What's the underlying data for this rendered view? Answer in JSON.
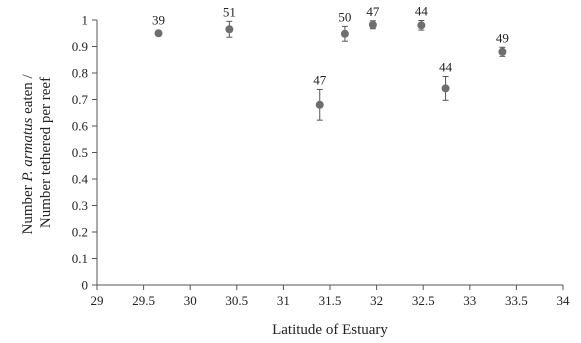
{
  "chart_data": {
    "type": "scatter",
    "xlabel": "Latitude of Estuary",
    "ylabel": {
      "line1_prefix": "Number ",
      "line1_species": "P. armatus",
      "line1_suffix": " eaten /",
      "line2": "Number tethered per reef"
    },
    "xlim": [
      29,
      34
    ],
    "ylim": [
      0,
      1
    ],
    "xticks": [
      29,
      29.5,
      30,
      30.5,
      31,
      31.5,
      32,
      32.5,
      33,
      33.5,
      34
    ],
    "xtick_labels": [
      "29",
      "29.5",
      "30",
      "30.5",
      "31",
      "31.5",
      "32",
      "32.5",
      "33",
      "33.5",
      "34"
    ],
    "yticks": [
      0,
      0.1,
      0.2,
      0.3,
      0.4,
      0.5,
      0.6,
      0.7,
      0.8,
      0.9,
      1
    ],
    "ytick_labels": [
      "0",
      "0.1",
      "0.2",
      "0.3",
      "0.4",
      "0.5",
      "0.6",
      "0.7",
      "0.8",
      "0.9",
      "1"
    ],
    "grid": false,
    "marker_color": "#6e6e6e",
    "points": [
      {
        "x": 29.66,
        "y": 0.95,
        "err": 0.0,
        "label": "39"
      },
      {
        "x": 30.42,
        "y": 0.965,
        "err": 0.03,
        "label": "51"
      },
      {
        "x": 31.39,
        "y": 0.68,
        "err": 0.058,
        "label": "47"
      },
      {
        "x": 31.66,
        "y": 0.948,
        "err": 0.028,
        "label": "50"
      },
      {
        "x": 31.96,
        "y": 0.982,
        "err": 0.015,
        "label": "47"
      },
      {
        "x": 32.48,
        "y": 0.98,
        "err": 0.018,
        "label": "44"
      },
      {
        "x": 32.74,
        "y": 0.742,
        "err": 0.045,
        "label": "44"
      },
      {
        "x": 33.35,
        "y": 0.88,
        "err": 0.017,
        "label": "49"
      }
    ]
  }
}
